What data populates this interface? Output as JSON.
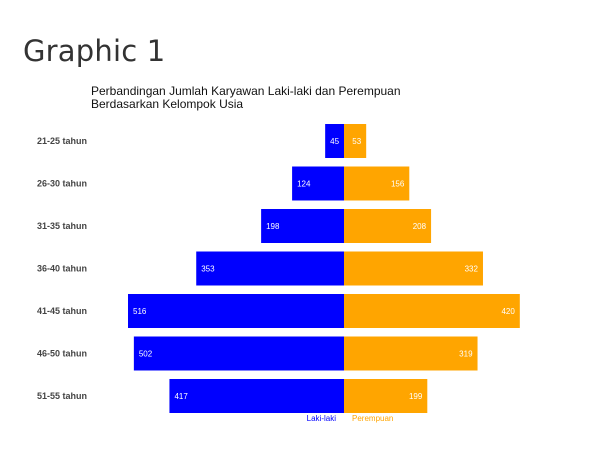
{
  "page": {
    "heading": "Graphic 1"
  },
  "chart_data": {
    "type": "bar",
    "orientation": "horizontal-diverging",
    "title_line1": "Perbandingan Jumlah Karyawan Laki-laki dan Perempuan",
    "title_line2": "Berdasarkan Kelompok Usia",
    "categories": [
      "21-25 tahun",
      "26-30 tahun",
      "31-35 tahun",
      "36-40 tahun",
      "41-45 tahun",
      "46-50 tahun",
      "51-55 tahun"
    ],
    "series": [
      {
        "name": "Laki-laki",
        "color": "#0000ff",
        "side": "left",
        "values": [
          45,
          124,
          198,
          353,
          516,
          502,
          417
        ]
      },
      {
        "name": "Perempuan",
        "color": "#ffa500",
        "side": "right",
        "values": [
          53,
          156,
          208,
          332,
          420,
          319,
          199
        ]
      }
    ],
    "xlim": [
      -516,
      516
    ],
    "grid": false,
    "legend": "bottom-center"
  }
}
